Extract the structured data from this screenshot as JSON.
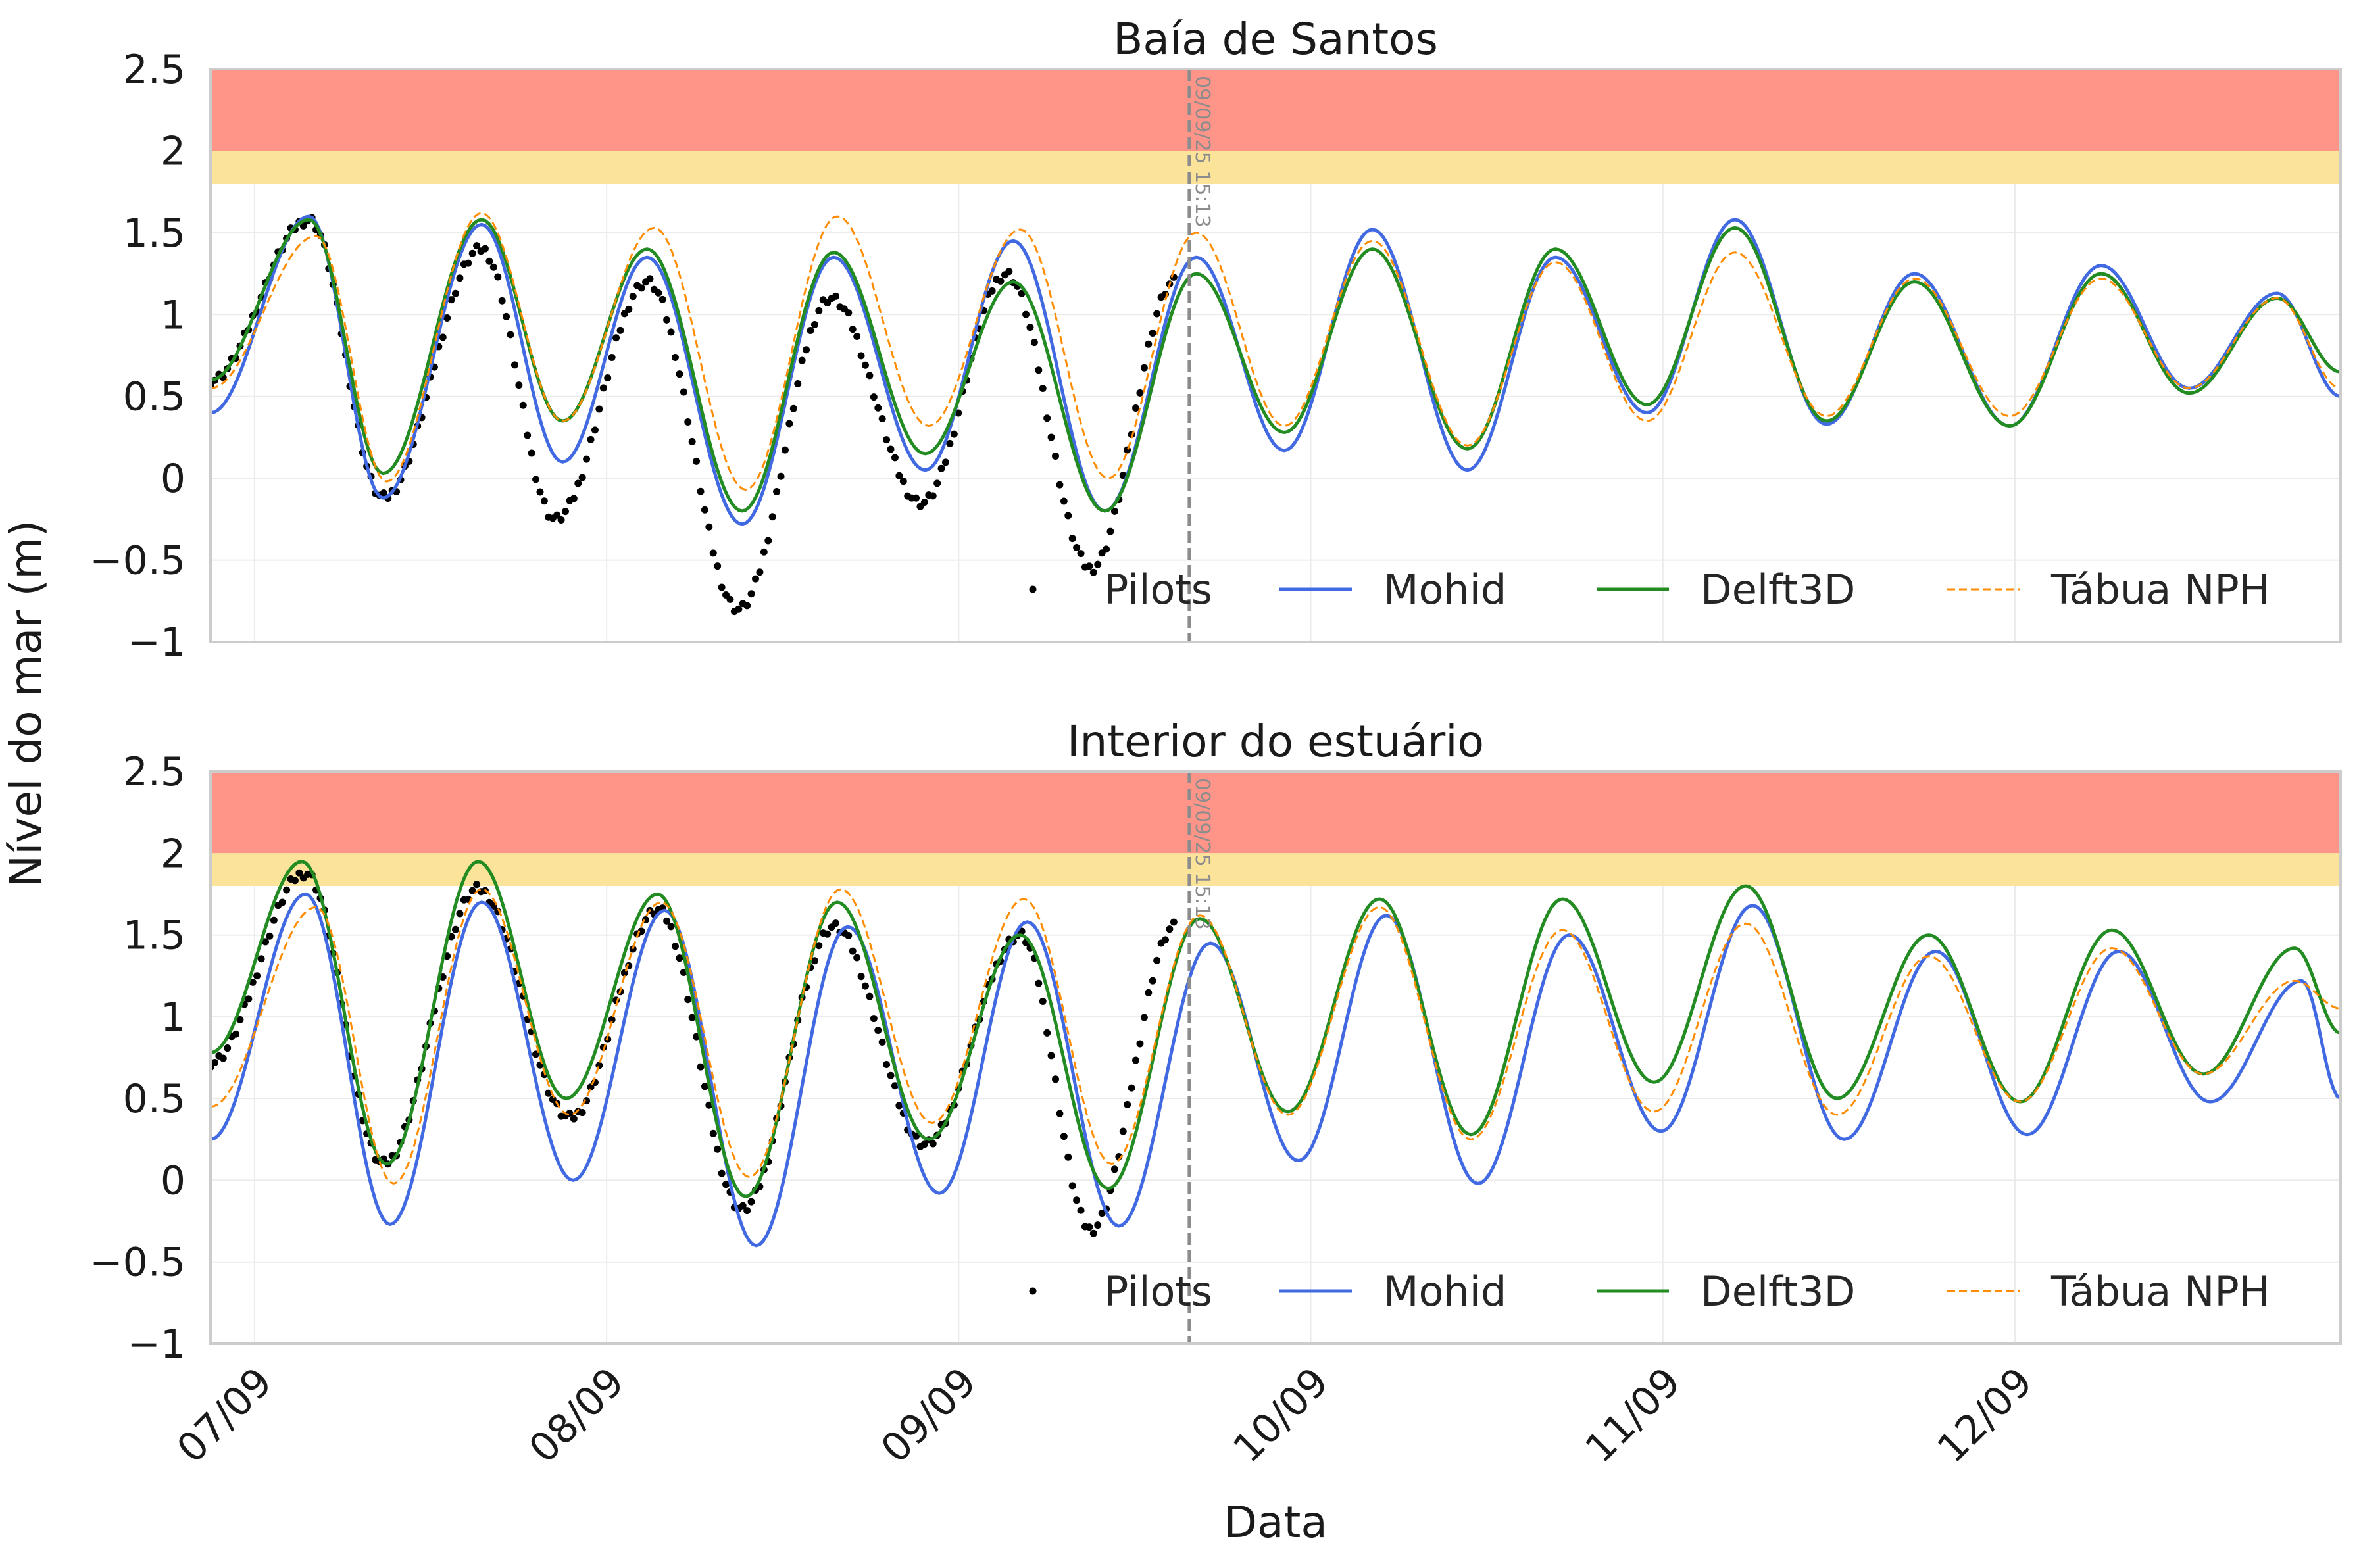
{
  "figure": {
    "ylabel": "Nível do mar (m)",
    "xlabel": "Data",
    "colors": {
      "pilots": "#000000",
      "mohid": "#4169e1",
      "delft3d": "#228b22",
      "tabua": "#ff8c00",
      "band_red": "#ff9589",
      "band_yellow": "#fbe39a",
      "marker_line": "#8c8c8c"
    },
    "legend": {
      "placement": "lower-right",
      "ncol": 4,
      "items": [
        "Pilots",
        "Mohid",
        "Delft3D",
        "Tábua NPH"
      ]
    }
  },
  "chart_data": [
    {
      "type": "line",
      "title": "Baía de Santos",
      "xlabel": "",
      "ylabel": "Nível do mar (m)",
      "xlim_days": [
        0,
        6.05
      ],
      "ylim": [
        -1,
        2.5
      ],
      "yticks": [
        "2.5",
        "2",
        "1.5",
        "1",
        "0.5",
        "0",
        "−0.5",
        "−1"
      ],
      "xticks": [
        "07/09",
        "08/09",
        "09/09",
        "10/09",
        "11/09",
        "12/09"
      ],
      "grid": true,
      "bands": [
        {
          "from": 2.0,
          "to": 2.5,
          "color": "red"
        },
        {
          "from": 1.8,
          "to": 2.0,
          "color": "yellow"
        }
      ],
      "marker": {
        "day": 2.78,
        "label": "09/09/25 15:13"
      },
      "series": [
        {
          "name": "Pilots",
          "style": "points",
          "days": [
            0,
            0.28,
            0.49,
            0.77,
            0.98,
            1.24,
            1.5,
            1.76,
            2.02,
            2.26,
            2.5,
            2.74
          ],
          "values": [
            0.6,
            1.58,
            -0.12,
            1.4,
            -0.25,
            1.2,
            -0.8,
            1.1,
            -0.15,
            1.25,
            -0.55,
            1.2
          ]
        },
        {
          "name": "Mohid",
          "style": "solid",
          "days": [
            0,
            0.28,
            0.49,
            0.77,
            1.0,
            1.24,
            1.51,
            1.77,
            2.03,
            2.28,
            2.54,
            2.8,
            3.05,
            3.3,
            3.57,
            3.82,
            4.08,
            4.33,
            4.59,
            4.84,
            5.11,
            5.37,
            5.62,
            5.87,
            6.05
          ],
          "values": [
            0.4,
            1.6,
            -0.12,
            1.55,
            0.1,
            1.35,
            -0.28,
            1.35,
            0.05,
            1.45,
            -0.2,
            1.35,
            0.17,
            1.52,
            0.05,
            1.35,
            0.4,
            1.58,
            0.33,
            1.25,
            0.32,
            1.3,
            0.55,
            1.13,
            0.5
          ]
        },
        {
          "name": "Delft3D",
          "style": "solid",
          "days": [
            0,
            0.28,
            0.49,
            0.77,
            1.0,
            1.24,
            1.51,
            1.77,
            2.03,
            2.28,
            2.54,
            2.8,
            3.05,
            3.3,
            3.57,
            3.82,
            4.08,
            4.33,
            4.59,
            4.84,
            5.11,
            5.37,
            5.62,
            5.87,
            6.05
          ],
          "values": [
            0.6,
            1.58,
            0.03,
            1.58,
            0.35,
            1.4,
            -0.2,
            1.38,
            0.15,
            1.2,
            -0.2,
            1.25,
            0.28,
            1.4,
            0.18,
            1.4,
            0.45,
            1.53,
            0.35,
            1.2,
            0.32,
            1.25,
            0.52,
            1.1,
            0.65
          ]
        },
        {
          "name": "Tábua NPH",
          "style": "dashed",
          "days": [
            0,
            0.3,
            0.5,
            0.77,
            1.0,
            1.26,
            1.52,
            1.78,
            2.04,
            2.3,
            2.55,
            2.8,
            3.05,
            3.3,
            3.57,
            3.82,
            4.08,
            4.33,
            4.59,
            4.84,
            5.11,
            5.37,
            5.62,
            5.87,
            6.05
          ],
          "values": [
            0.55,
            1.48,
            -0.02,
            1.62,
            0.35,
            1.53,
            -0.07,
            1.6,
            0.32,
            1.52,
            0.0,
            1.5,
            0.32,
            1.45,
            0.2,
            1.32,
            0.35,
            1.38,
            0.38,
            1.22,
            0.38,
            1.22,
            0.55,
            1.1,
            0.55
          ]
        }
      ]
    },
    {
      "type": "line",
      "title": "Interior do estuário",
      "xlabel": "Data",
      "ylabel": "Nível do mar (m)",
      "xlim_days": [
        0,
        6.05
      ],
      "ylim": [
        -1,
        2.5
      ],
      "yticks": [
        "2.5",
        "2",
        "1.5",
        "1",
        "0.5",
        "0",
        "−0.5",
        "−1"
      ],
      "xticks": [
        "07/09",
        "08/09",
        "09/09",
        "10/09",
        "11/09",
        "12/09"
      ],
      "grid": true,
      "bands": [
        {
          "from": 2.0,
          "to": 2.5,
          "color": "red"
        },
        {
          "from": 1.8,
          "to": 2.0,
          "color": "yellow"
        }
      ],
      "marker": {
        "day": 2.78,
        "label": "09/09/25 15:13"
      },
      "series": [
        {
          "name": "Pilots",
          "style": "points",
          "days": [
            0,
            0.27,
            0.49,
            0.76,
            1.02,
            1.27,
            1.51,
            1.77,
            2.03,
            2.3,
            2.5,
            2.74
          ],
          "values": [
            0.72,
            1.88,
            0.1,
            1.78,
            0.38,
            1.65,
            -0.18,
            1.55,
            0.22,
            1.5,
            -0.3,
            1.55
          ]
        },
        {
          "name": "Mohid",
          "style": "solid",
          "days": [
            0,
            0.27,
            0.51,
            0.77,
            1.03,
            1.29,
            1.55,
            1.81,
            2.07,
            2.32,
            2.58,
            2.84,
            3.09,
            3.34,
            3.6,
            3.86,
            4.12,
            4.38,
            4.64,
            4.9,
            5.16,
            5.42,
            5.68,
            5.94,
            6.05
          ],
          "values": [
            0.25,
            1.75,
            -0.27,
            1.7,
            0.0,
            1.65,
            -0.4,
            1.55,
            -0.08,
            1.58,
            -0.28,
            1.45,
            0.12,
            1.62,
            -0.02,
            1.5,
            0.3,
            1.68,
            0.25,
            1.4,
            0.28,
            1.4,
            0.48,
            1.22,
            0.5
          ]
        },
        {
          "name": "Delft3D",
          "style": "solid",
          "days": [
            0,
            0.26,
            0.5,
            0.76,
            1.01,
            1.27,
            1.52,
            1.78,
            2.04,
            2.3,
            2.55,
            2.81,
            3.06,
            3.32,
            3.58,
            3.84,
            4.1,
            4.36,
            4.62,
            4.88,
            5.14,
            5.4,
            5.66,
            5.92,
            6.05
          ],
          "values": [
            0.78,
            1.95,
            0.1,
            1.95,
            0.5,
            1.75,
            -0.1,
            1.7,
            0.25,
            1.5,
            -0.05,
            1.6,
            0.42,
            1.72,
            0.28,
            1.72,
            0.6,
            1.8,
            0.5,
            1.5,
            0.48,
            1.53,
            0.65,
            1.42,
            0.9
          ]
        },
        {
          "name": "Tábua NPH",
          "style": "dashed",
          "days": [
            0,
            0.3,
            0.52,
            0.77,
            1.02,
            1.28,
            1.53,
            1.79,
            2.05,
            2.31,
            2.56,
            2.81,
            3.06,
            3.32,
            3.58,
            3.84,
            4.1,
            4.36,
            4.62,
            4.88,
            5.14,
            5.4,
            5.66,
            5.92,
            6.05
          ],
          "values": [
            0.45,
            1.67,
            -0.02,
            1.78,
            0.4,
            1.7,
            0.02,
            1.78,
            0.35,
            1.72,
            0.1,
            1.62,
            0.4,
            1.67,
            0.25,
            1.53,
            0.42,
            1.57,
            0.4,
            1.37,
            0.48,
            1.42,
            0.65,
            1.22,
            1.05
          ]
        }
      ]
    }
  ]
}
